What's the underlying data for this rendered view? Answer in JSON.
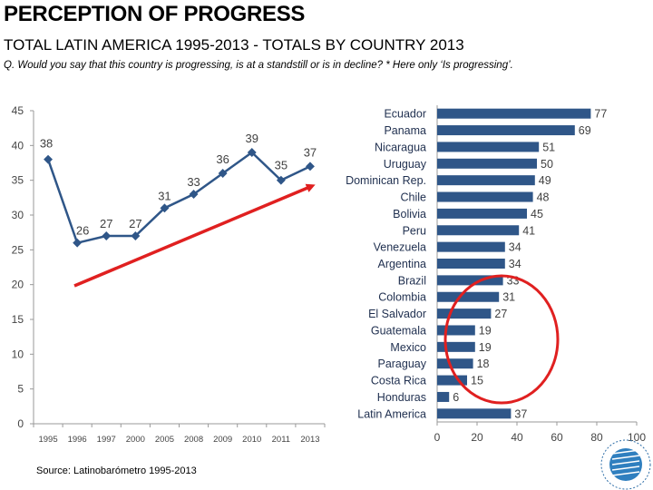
{
  "header": {
    "title": "PERCEPTION OF PROGRESS",
    "subtitle": "TOTAL LATIN AMERICA 1995-2013 - TOTALS BY COUNTRY 2013",
    "question": "Q. Would you say that this country is progressing, is at a standstill or is in decline? * Here only ‘Is progressing’."
  },
  "source": "Source: Latinobarómetro 1995-2013",
  "colors": {
    "line": "#2f5688",
    "bar": "#2f5688",
    "arrow": "#e02020",
    "ellipse": "#e02020"
  },
  "chart_data": [
    {
      "type": "line",
      "x": [
        "1995",
        "1996",
        "1997",
        "2000",
        "2005",
        "2008",
        "2009",
        "2010",
        "2011",
        "2013"
      ],
      "values": [
        38,
        26,
        27,
        27,
        31,
        33,
        36,
        39,
        35,
        37
      ],
      "ylim": [
        0,
        45
      ],
      "yticks": [
        "0",
        "5",
        "10",
        "15",
        "20",
        "25",
        "30",
        "35",
        "40",
        "45"
      ],
      "annotations": [
        "upward-trend-arrow"
      ]
    },
    {
      "type": "bar",
      "orientation": "horizontal",
      "categories": [
        "Ecuador",
        "Panama",
        "Nicaragua",
        "Uruguay",
        "Dominican Rep.",
        "Chile",
        "Bolivia",
        "Peru",
        "Venezuela",
        "Argentina",
        "Brazil",
        "Colombia",
        "El Salvador",
        "Guatemala",
        "Mexico",
        "Paraguay",
        "Costa Rica",
        "Honduras",
        "Latin America"
      ],
      "values": [
        77,
        69,
        51,
        50,
        49,
        48,
        45,
        41,
        34,
        34,
        33,
        31,
        27,
        19,
        19,
        18,
        15,
        6,
        37
      ],
      "xlim": [
        0,
        100
      ],
      "xticks": [
        "0",
        "20",
        "40",
        "60",
        "80",
        "100"
      ],
      "annotations": [
        "highlight-ellipse-low-values"
      ]
    }
  ]
}
